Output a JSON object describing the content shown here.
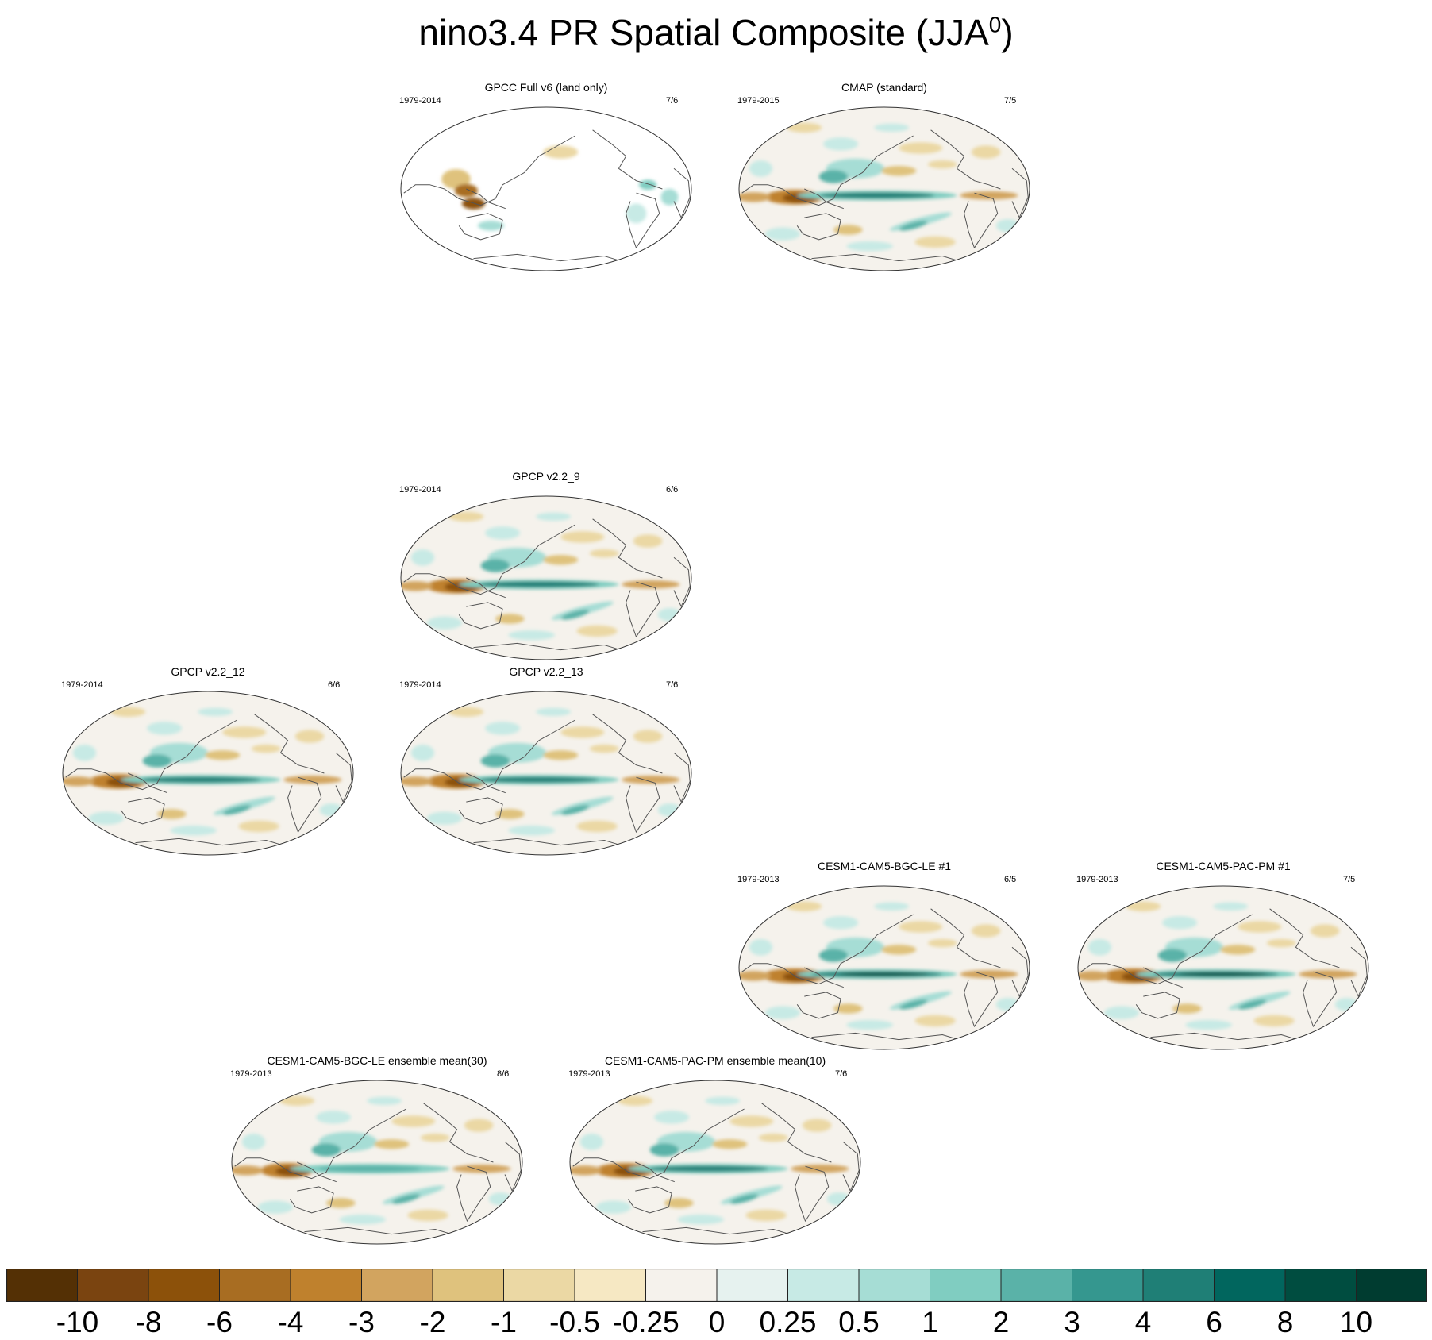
{
  "title": {
    "main": "nino3.4 PR Spatial Composite (JJA",
    "superscript": "0",
    "close": ")"
  },
  "panels": [
    {
      "title": "GPCC Full v6 (land only)",
      "years": "1979-2014",
      "ratio": "7/6",
      "variant": "land",
      "strength": 0.6
    },
    {
      "title": "CMAP (standard)",
      "years": "1979-2015",
      "ratio": "7/5",
      "variant": "obs",
      "strength": 0.7
    },
    {
      "title": "GPCP v2.2_9",
      "years": "1979-2014",
      "ratio": "6/6",
      "variant": "obs",
      "strength": 0.8
    },
    {
      "title": "GPCP v2.2_12",
      "years": "1979-2014",
      "ratio": "6/6",
      "variant": "obs",
      "strength": 0.8
    },
    {
      "title": "GPCP v2.2_13",
      "years": "1979-2014",
      "ratio": "7/6",
      "variant": "obs",
      "strength": 0.8
    },
    {
      "title": "CESM1-CAM5-BGC-LE #1",
      "years": "1979-2013",
      "ratio": "6/5",
      "variant": "model",
      "strength": 1.0
    },
    {
      "title": "CESM1-CAM5-PAC-PM #1",
      "years": "1979-2013",
      "ratio": "7/5",
      "variant": "model",
      "strength": 0.9
    },
    {
      "title": "CESM1-CAM5-BGC-LE ensemble mean(30)",
      "years": "1979-2013",
      "ratio": "8/6",
      "variant": "ensemble",
      "strength": 0.45
    },
    {
      "title": "CESM1-CAM5-PAC-PM ensemble mean(10)",
      "years": "1979-2013",
      "ratio": "7/6",
      "variant": "model",
      "strength": 0.8
    }
  ],
  "colorbar": {
    "colors": [
      "#543005",
      "#7a4410",
      "#8c510a",
      "#a86d22",
      "#bf812d",
      "#d2a45f",
      "#dfc27d",
      "#ebd8a4",
      "#f6e8c3",
      "#f5f2ec",
      "#e6f2ef",
      "#c7eae5",
      "#a6ddd5",
      "#80cdc1",
      "#5ab2a8",
      "#35978f",
      "#1f7f76",
      "#01665e",
      "#004d40",
      "#003c30"
    ],
    "labels": [
      "-10",
      "-8",
      "-6",
      "-4",
      "-3",
      "-2",
      "-1",
      "-0.5",
      "-0.25",
      "0",
      "0.25",
      "0.5",
      "1",
      "2",
      "3",
      "4",
      "6",
      "8",
      "10"
    ]
  }
}
